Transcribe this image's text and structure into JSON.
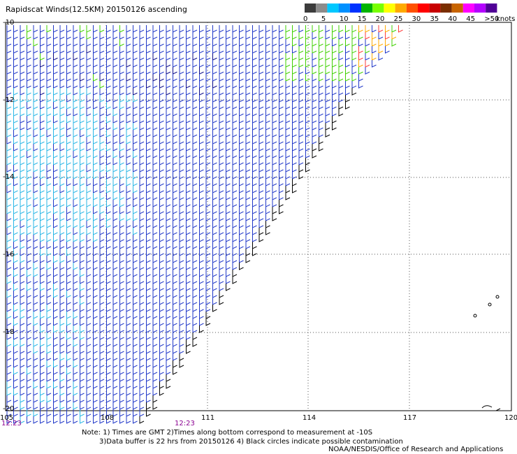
{
  "header": {
    "title": "Rapidscat Winds(12.5KM) 20150126 ascending"
  },
  "legend": {
    "colors": [
      "#3c3c3c",
      "#8c8c8c",
      "#00c8ff",
      "#0090ff",
      "#0032ff",
      "#00b400",
      "#78ff00",
      "#ffff00",
      "#ffaa00",
      "#ff5000",
      "#ff0000",
      "#c80000",
      "#7a2e00",
      "#c86400",
      "#ff00ff",
      "#b400ff",
      "#500096"
    ],
    "labels": [
      "0",
      "5",
      "10",
      "15",
      "20",
      "25",
      "30",
      "35",
      "40",
      "45",
      ">50"
    ],
    "unit": "knots"
  },
  "axes": {
    "lat_labels": [
      "-10",
      "-12",
      "-14",
      "-16",
      "-18",
      "-20"
    ],
    "lon_labels": [
      "105",
      "108",
      "111",
      "114",
      "117",
      "120"
    ]
  },
  "times": [
    "12:23",
    "12:23"
  ],
  "notes": {
    "line1": "Note: 1) Times are GMT 2)Times along bottom correspond to measurement at -10S",
    "line2": "3)Data buffer is 22 hrs from 20150126 4) Black circles indicate possible contamination",
    "credit": "NOAA/NESDIS/Office of Research and Applications"
  }
}
